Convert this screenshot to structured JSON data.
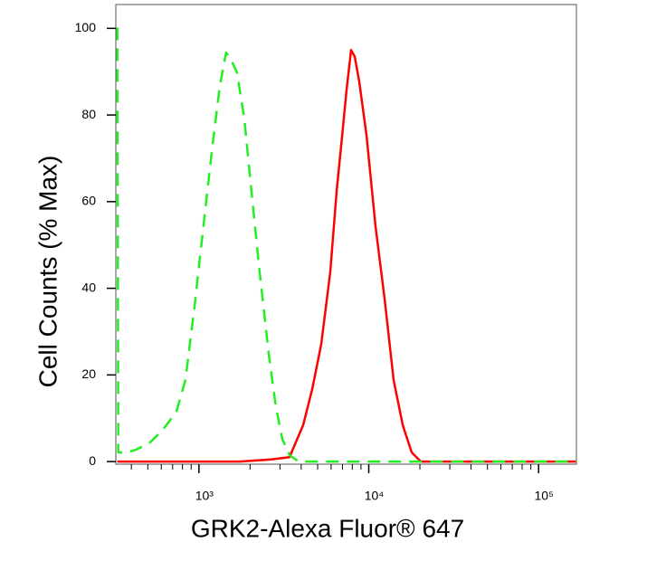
{
  "chart_data": {
    "type": "line",
    "xlabel": "GRK2-Alexa Fluor® 647",
    "ylabel": "Cell Counts (% Max)",
    "xlog": true,
    "xlim": [
      324,
      167000
    ],
    "ylim": [
      -0.6,
      105.5
    ],
    "xticks": [
      {
        "value": 1000,
        "label": "10³"
      },
      {
        "value": 10000,
        "label": "10⁴"
      },
      {
        "value": 100000,
        "label": "10⁵"
      }
    ],
    "xminorticks": [
      400,
      500,
      600,
      700,
      800,
      900,
      2000,
      3000,
      4000,
      5000,
      6000,
      7000,
      8000,
      9000,
      20000,
      30000,
      40000,
      50000,
      60000,
      70000,
      80000,
      90000
    ],
    "yticks": [
      0,
      20,
      40,
      60,
      80,
      100
    ],
    "series": [
      {
        "color": "#ff0000",
        "line_style": "solid",
        "x": [
          331,
          1738,
          2672,
          3414,
          4105,
          4642,
          5248,
          5934,
          6471,
          6966,
          7396,
          7870,
          8267,
          8790,
          9701,
          10965,
          12393,
          14011,
          15849,
          17906,
          20270,
          24370,
          167000
        ],
        "values": [
          0,
          0,
          0.5,
          1.0,
          8.4,
          16.7,
          27.1,
          43.8,
          62.6,
          75.2,
          85.6,
          95,
          93.5,
          87.7,
          75.2,
          54.3,
          37.6,
          18.8,
          8.4,
          2.1,
          0,
          0,
          0
        ]
      },
      {
        "color": "#22ee22",
        "line_style": "dashed",
        "x": [
          331,
          335,
          374,
          423,
          509,
          612,
          736,
          832,
          940,
          1063,
          1202,
          1327,
          1445,
          1537,
          1676,
          1848,
          2037,
          2276,
          2574,
          2841,
          3097,
          3414,
          3861,
          167000
        ],
        "values": [
          100.2,
          2.1,
          2.1,
          2.7,
          4.2,
          7.3,
          11.5,
          18.8,
          35.5,
          54.3,
          73.1,
          86.6,
          94.4,
          93,
          89.8,
          79.3,
          62.6,
          43.8,
          25,
          12.5,
          5.2,
          1.5,
          0,
          0
        ]
      }
    ]
  }
}
